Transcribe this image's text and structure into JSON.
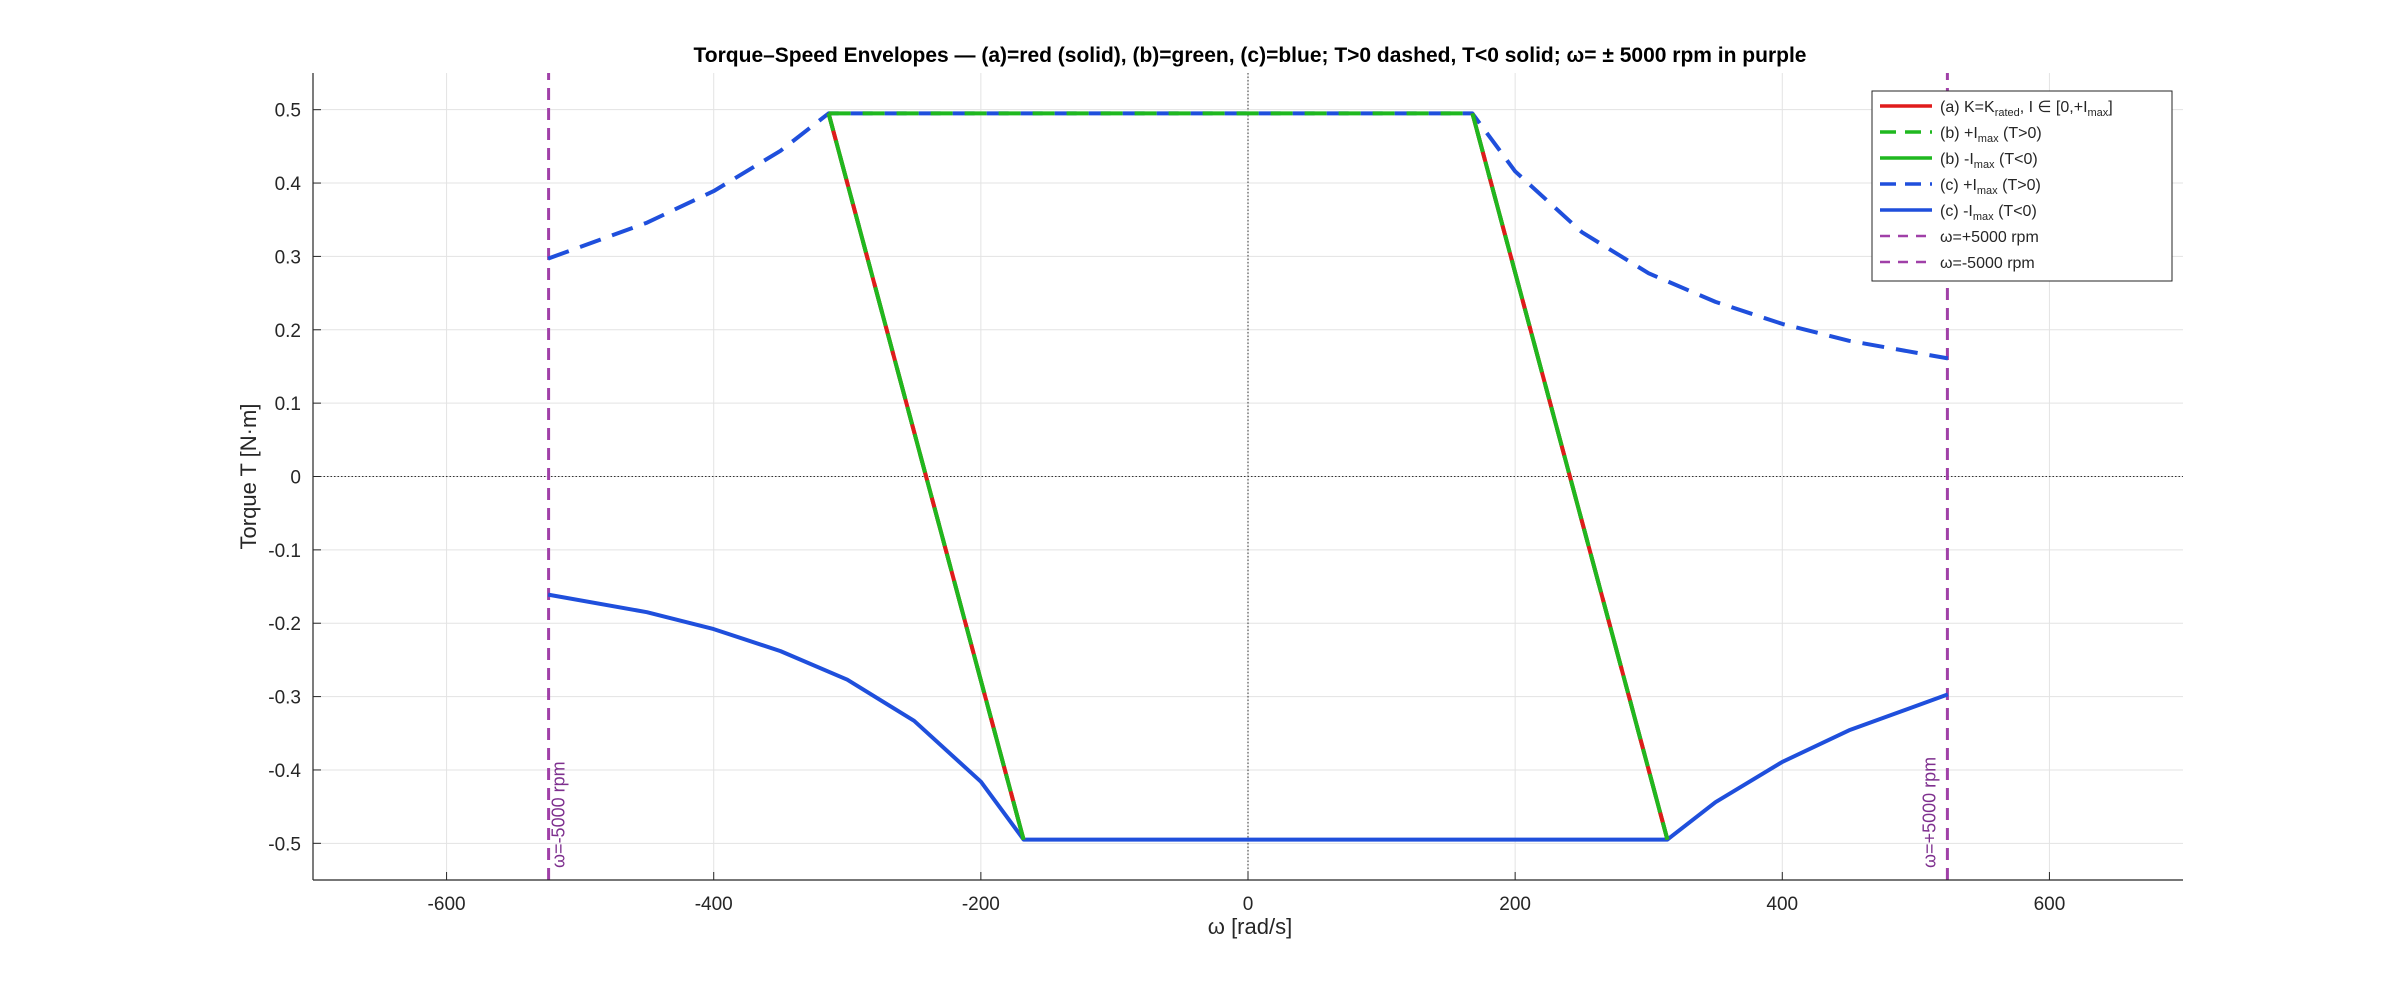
{
  "chart_data": {
    "type": "line",
    "title": "Torque–Speed Envelopes — (a)=red (solid), (b)=green, (c)=blue;   T>0 dashed, T<0 solid;   ω= ± 5000 rpm in purple",
    "xlabel": "ω   [rad/s]",
    "ylabel": "Torque  T  [N·m]",
    "xlim": [
      -700,
      700
    ],
    "ylim": [
      -0.55,
      0.55
    ],
    "xticks": [
      -600,
      -400,
      -200,
      0,
      200,
      400,
      600
    ],
    "yticks": [
      0.5,
      0.4,
      0.3,
      0.2,
      0.1,
      0,
      -0.1,
      -0.2,
      -0.3,
      -0.4,
      -0.5
    ],
    "grid": true,
    "legend_position": "top-right",
    "colors": {
      "red": "#e01b1b",
      "green": "#1fb81f",
      "blue": "#1f4fdc",
      "purple": "#a040a8"
    },
    "series": [
      {
        "name": "(a)  K=K_rated,   I ∈ [0,+I_max]",
        "color": "#e01b1b",
        "style": "solid",
        "x": [
          -314,
          -168,
          168,
          314
        ],
        "y": [
          0.495,
          -0.495,
          0.495,
          -0.495
        ]
      },
      {
        "name": "(b)  +I_max  (T>0)",
        "color": "#1fb81f",
        "style": "dashed",
        "x": [
          -314,
          168
        ],
        "y": [
          0.495,
          0.495
        ]
      },
      {
        "name": "(b)  -I_max  (T<0)",
        "color": "#1fb81f",
        "style": "solid",
        "x": [
          -314,
          -168,
          314,
          168
        ],
        "y": [
          0.495,
          -0.495,
          -0.495,
          0.495
        ]
      },
      {
        "name": "(c)  +I_max  (T>0)",
        "color": "#1f4fdc",
        "style": "dashed",
        "x": [
          -524,
          -450,
          -400,
          -350,
          -314,
          -250,
          0,
          168,
          200,
          250,
          300,
          350,
          400,
          450,
          524
        ],
        "y": [
          0.297,
          0.346,
          0.389,
          0.444,
          0.495,
          0.495,
          0.495,
          0.495,
          0.416,
          0.333,
          0.277,
          0.238,
          0.208,
          0.185,
          0.161
        ]
      },
      {
        "name": "(c)  -I_max  (T<0)",
        "color": "#1f4fdc",
        "style": "solid",
        "x": [
          -524,
          -450,
          -400,
          -350,
          -300,
          -250,
          -200,
          -168,
          0,
          314,
          350,
          400,
          450,
          524
        ],
        "y": [
          -0.161,
          -0.185,
          -0.208,
          -0.238,
          -0.277,
          -0.333,
          -0.416,
          -0.495,
          -0.495,
          -0.495,
          -0.444,
          -0.389,
          -0.346,
          -0.297
        ]
      },
      {
        "name": "ω=+5000  rpm",
        "color": "#a040a8",
        "style": "dashed",
        "x": [
          523.6,
          523.6
        ],
        "y": [
          -0.55,
          0.55
        ]
      },
      {
        "name": "ω=-5000  rpm",
        "color": "#a040a8",
        "style": "dashed",
        "x": [
          -523.6,
          -523.6
        ],
        "y": [
          -0.55,
          0.55
        ]
      }
    ],
    "legend": [
      {
        "label": "(a)  K=K",
        "sub": "rated",
        "rest": ",   I ∈ [0,+I",
        "sub2": "max",
        "tail": "]",
        "color": "#e01b1b",
        "style": "solid"
      },
      {
        "label": "(b)  +I",
        "sub": "max",
        "rest": "  (T>0)",
        "color": "#1fb81f",
        "style": "dashed"
      },
      {
        "label": "(b)  -I",
        "sub": "max",
        "rest": "  (T<0)",
        "color": "#1fb81f",
        "style": "solid"
      },
      {
        "label": "(c)  +I",
        "sub": "max",
        "rest": "  (T>0)",
        "color": "#1f4fdc",
        "style": "dashed"
      },
      {
        "label": "(c)  -I",
        "sub": "max",
        "rest": "  (T<0)",
        "color": "#1f4fdc",
        "style": "solid"
      },
      {
        "label": "ω=+5000  rpm",
        "color": "#a040a8",
        "style": "dashed"
      },
      {
        "label": "ω=-5000  rpm",
        "color": "#a040a8",
        "style": "dashed"
      }
    ],
    "annotations": [
      {
        "text": "ω=-5000  rpm",
        "x": -523.6
      },
      {
        "text": "ω=+5000  rpm",
        "x": 523.6
      }
    ]
  }
}
